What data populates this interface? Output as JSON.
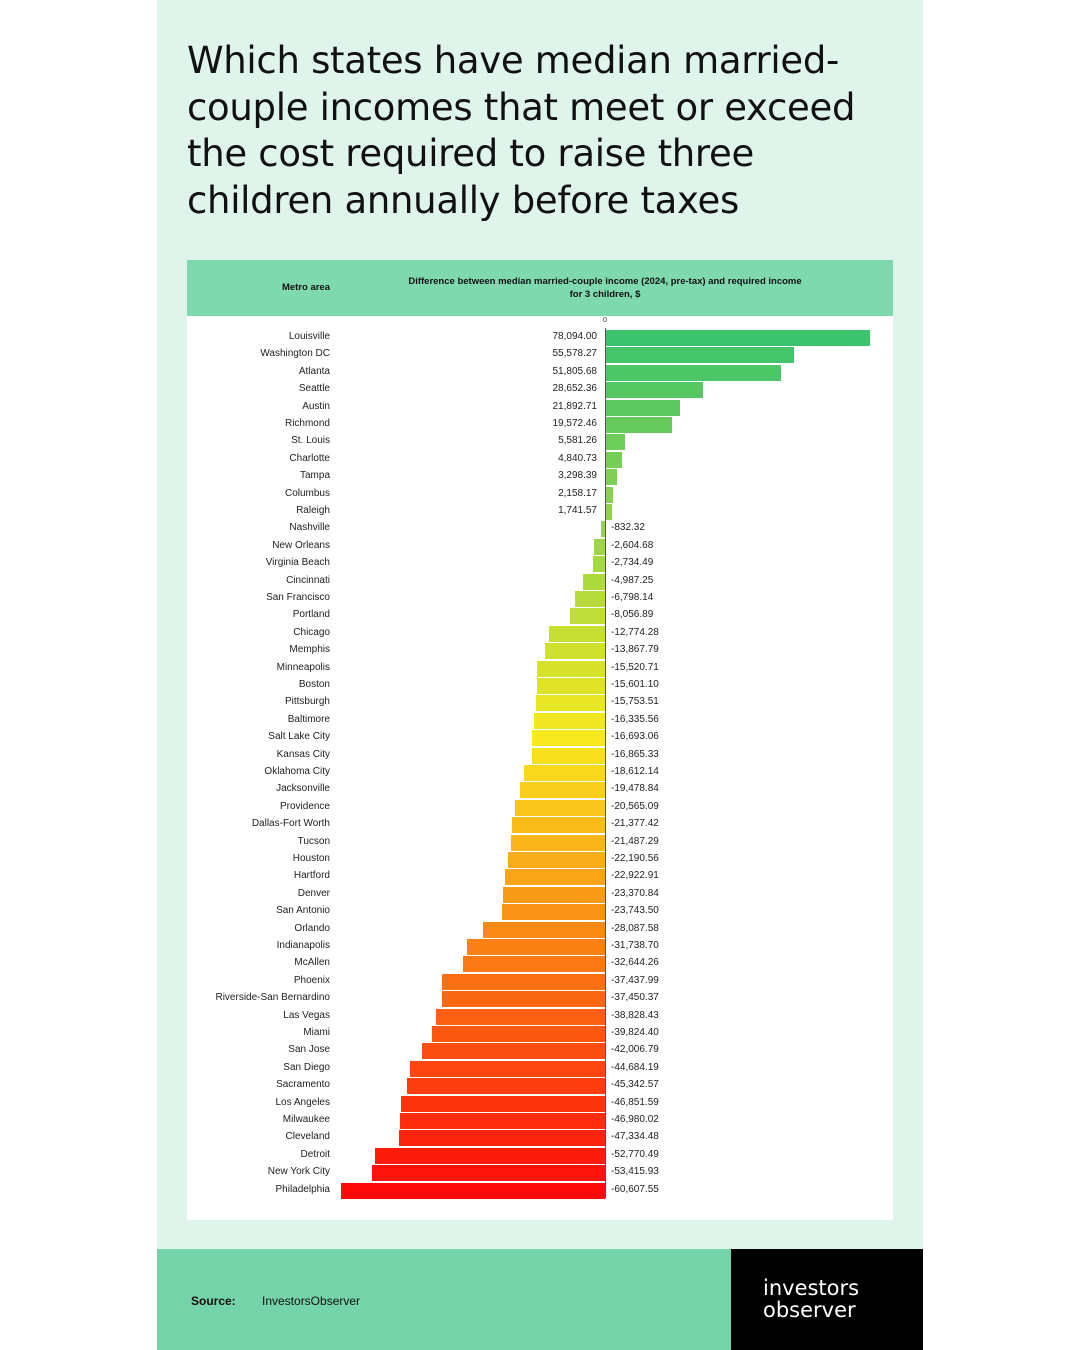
{
  "title": "Which states have median married-couple incomes that meet or exceed the cost required to raise three children annually before taxes",
  "chart_data": {
    "type": "bar",
    "orientation": "horizontal",
    "header_category": "Metro area",
    "header_value": "Difference between median married-couple income (2024, pre-tax) and required income for 3 children, $",
    "zero_label": "0",
    "categories": [
      "Louisville",
      "Washington DC",
      "Atlanta",
      "Seattle",
      "Austin",
      "Richmond",
      "St. Louis",
      "Charlotte",
      "Tampa",
      "Columbus",
      "Raleigh",
      "Nashville",
      "New Orleans",
      "Virginia Beach",
      "Cincinnati",
      "San Francisco",
      "Portland",
      "Chicago",
      "Memphis",
      "Minneapolis",
      "Boston",
      "Pittsburgh",
      "Baltimore",
      "Salt Lake City",
      "Kansas City",
      "Oklahoma City",
      "Jacksonville",
      "Providence",
      "Dallas-Fort Worth",
      "Tucson",
      "Houston",
      "Hartford",
      "Denver",
      "San Antonio",
      "Orlando",
      "Indianapolis",
      "McAllen",
      "Phoenix",
      "Riverside-San Bernardino",
      "Las Vegas",
      "Miami",
      "San Jose",
      "San Diego",
      "Sacramento",
      "Los Angeles",
      "Milwaukee",
      "Cleveland",
      "Detroit",
      "New York City",
      "Philadelphia"
    ],
    "values": [
      78094.0,
      55578.27,
      51805.68,
      28652.36,
      21892.71,
      19572.46,
      5581.26,
      4840.73,
      3298.39,
      2158.17,
      1741.57,
      -832.32,
      -2604.68,
      -2734.49,
      -4987.25,
      -6798.14,
      -8056.89,
      -12774.28,
      -13867.79,
      -15520.71,
      -15601.1,
      -15753.51,
      -16335.56,
      -16693.06,
      -16865.33,
      -18612.14,
      -19478.84,
      -20565.09,
      -21377.42,
      -21487.29,
      -22190.56,
      -22922.91,
      -23370.84,
      -23743.5,
      -28087.58,
      -31738.7,
      -32644.26,
      -37437.99,
      -37450.37,
      -38828.43,
      -39824.4,
      -42006.79,
      -44684.19,
      -45342.57,
      -46851.59,
      -46980.02,
      -47334.48,
      -52770.49,
      -53415.93,
      -60607.55
    ],
    "labels": [
      "78,094.00",
      "55,578.27",
      "51,805.68",
      "28,652.36",
      "21,892.71",
      "19,572.46",
      "5,581.26",
      "4,840.73",
      "3,298.39",
      "2,158.17",
      "1,741.57",
      "-832.32",
      "-2,604.68",
      "-2,734.49",
      "-4,987.25",
      "-6,798.14",
      "-8,056.89",
      "-12,774.28",
      "-13,867.79",
      "-15,520.71",
      "-15,601.10",
      "-15,753.51",
      "-16,335.56",
      "-16,693.06",
      "-16,865.33",
      "-18,612.14",
      "-19,478.84",
      "-20,565.09",
      "-21,377.42",
      "-21,487.29",
      "-22,190.56",
      "-22,922.91",
      "-23,370.84",
      "-23,743.50",
      "-28,087.58",
      "-31,738.70",
      "-32,644.26",
      "-37,437.99",
      "-37,450.37",
      "-38,828.43",
      "-39,824.40",
      "-42,006.79",
      "-44,684.19",
      "-45,342.57",
      "-46,851.59",
      "-46,980.02",
      "-47,334.48",
      "-52,770.49",
      "-53,415.93",
      "-60,607.55"
    ],
    "colors": {
      "best": "#3cc36e",
      "mid": "#f8e81e",
      "worst": "#fd0a0a"
    }
  },
  "footer": {
    "source_label": "Source:",
    "source_value": "InvestorsObserver"
  },
  "logo": {
    "line1": "investors",
    "line2": "observer"
  }
}
